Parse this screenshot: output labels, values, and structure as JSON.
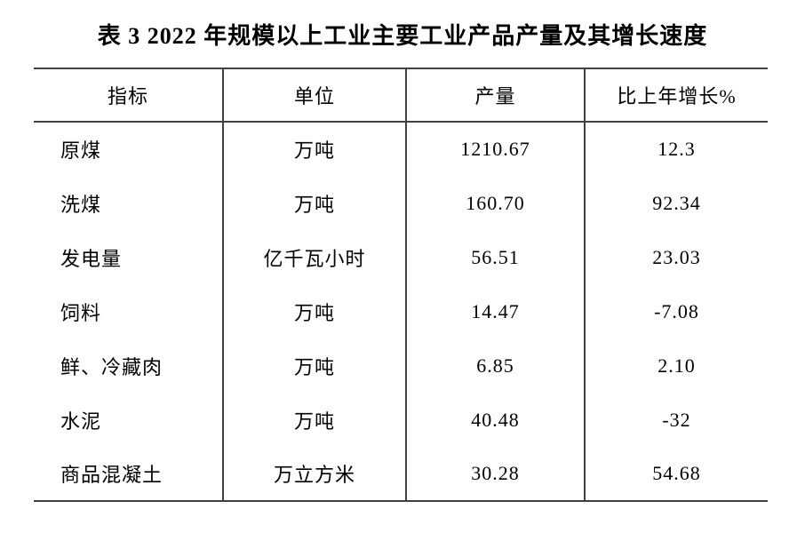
{
  "doc": {
    "title": "表 3  2022 年规模以上工业主要工业产品产量及其增长速度"
  },
  "table": {
    "columns": [
      "指标",
      "单位",
      "产量",
      "比上年增长%"
    ],
    "rows": [
      {
        "indicator": "原煤",
        "unit": "万吨",
        "output": "1210.67",
        "growth": "12.3"
      },
      {
        "indicator": "洗煤",
        "unit": "万吨",
        "output": "160.70",
        "growth": "92.34"
      },
      {
        "indicator": "发电量",
        "unit": "亿千瓦小时",
        "output": "56.51",
        "growth": "23.03"
      },
      {
        "indicator": "饲料",
        "unit": "万吨",
        "output": "14.47",
        "growth": "-7.08"
      },
      {
        "indicator": "鲜、冷藏肉",
        "unit": "万吨",
        "output": "6.85",
        "growth": "2.10"
      },
      {
        "indicator": "水泥",
        "unit": "万吨",
        "output": "40.48",
        "growth": "-32"
      },
      {
        "indicator": "商品混凝土",
        "unit": "万立方米",
        "output": "30.28",
        "growth": "54.68"
      }
    ]
  },
  "colors": {
    "background": "#ffffff",
    "text": "#000000",
    "rule_line": "#404040"
  },
  "chart_data": {
    "type": "table",
    "title": "表 3  2022 年规模以上工业主要工业产品产量及其增长速度",
    "columns": [
      "指标",
      "单位",
      "产量",
      "比上年增长%"
    ],
    "rows": [
      [
        "原煤",
        "万吨",
        1210.67,
        12.3
      ],
      [
        "洗煤",
        "万吨",
        160.7,
        92.34
      ],
      [
        "发电量",
        "亿千瓦小时",
        56.51,
        23.03
      ],
      [
        "饲料",
        "万吨",
        14.47,
        -7.08
      ],
      [
        "鲜、冷藏肉",
        "万吨",
        6.85,
        2.1
      ],
      [
        "水泥",
        "万吨",
        40.48,
        -32
      ],
      [
        "商品混凝土",
        "万立方米",
        30.28,
        54.68
      ]
    ]
  }
}
